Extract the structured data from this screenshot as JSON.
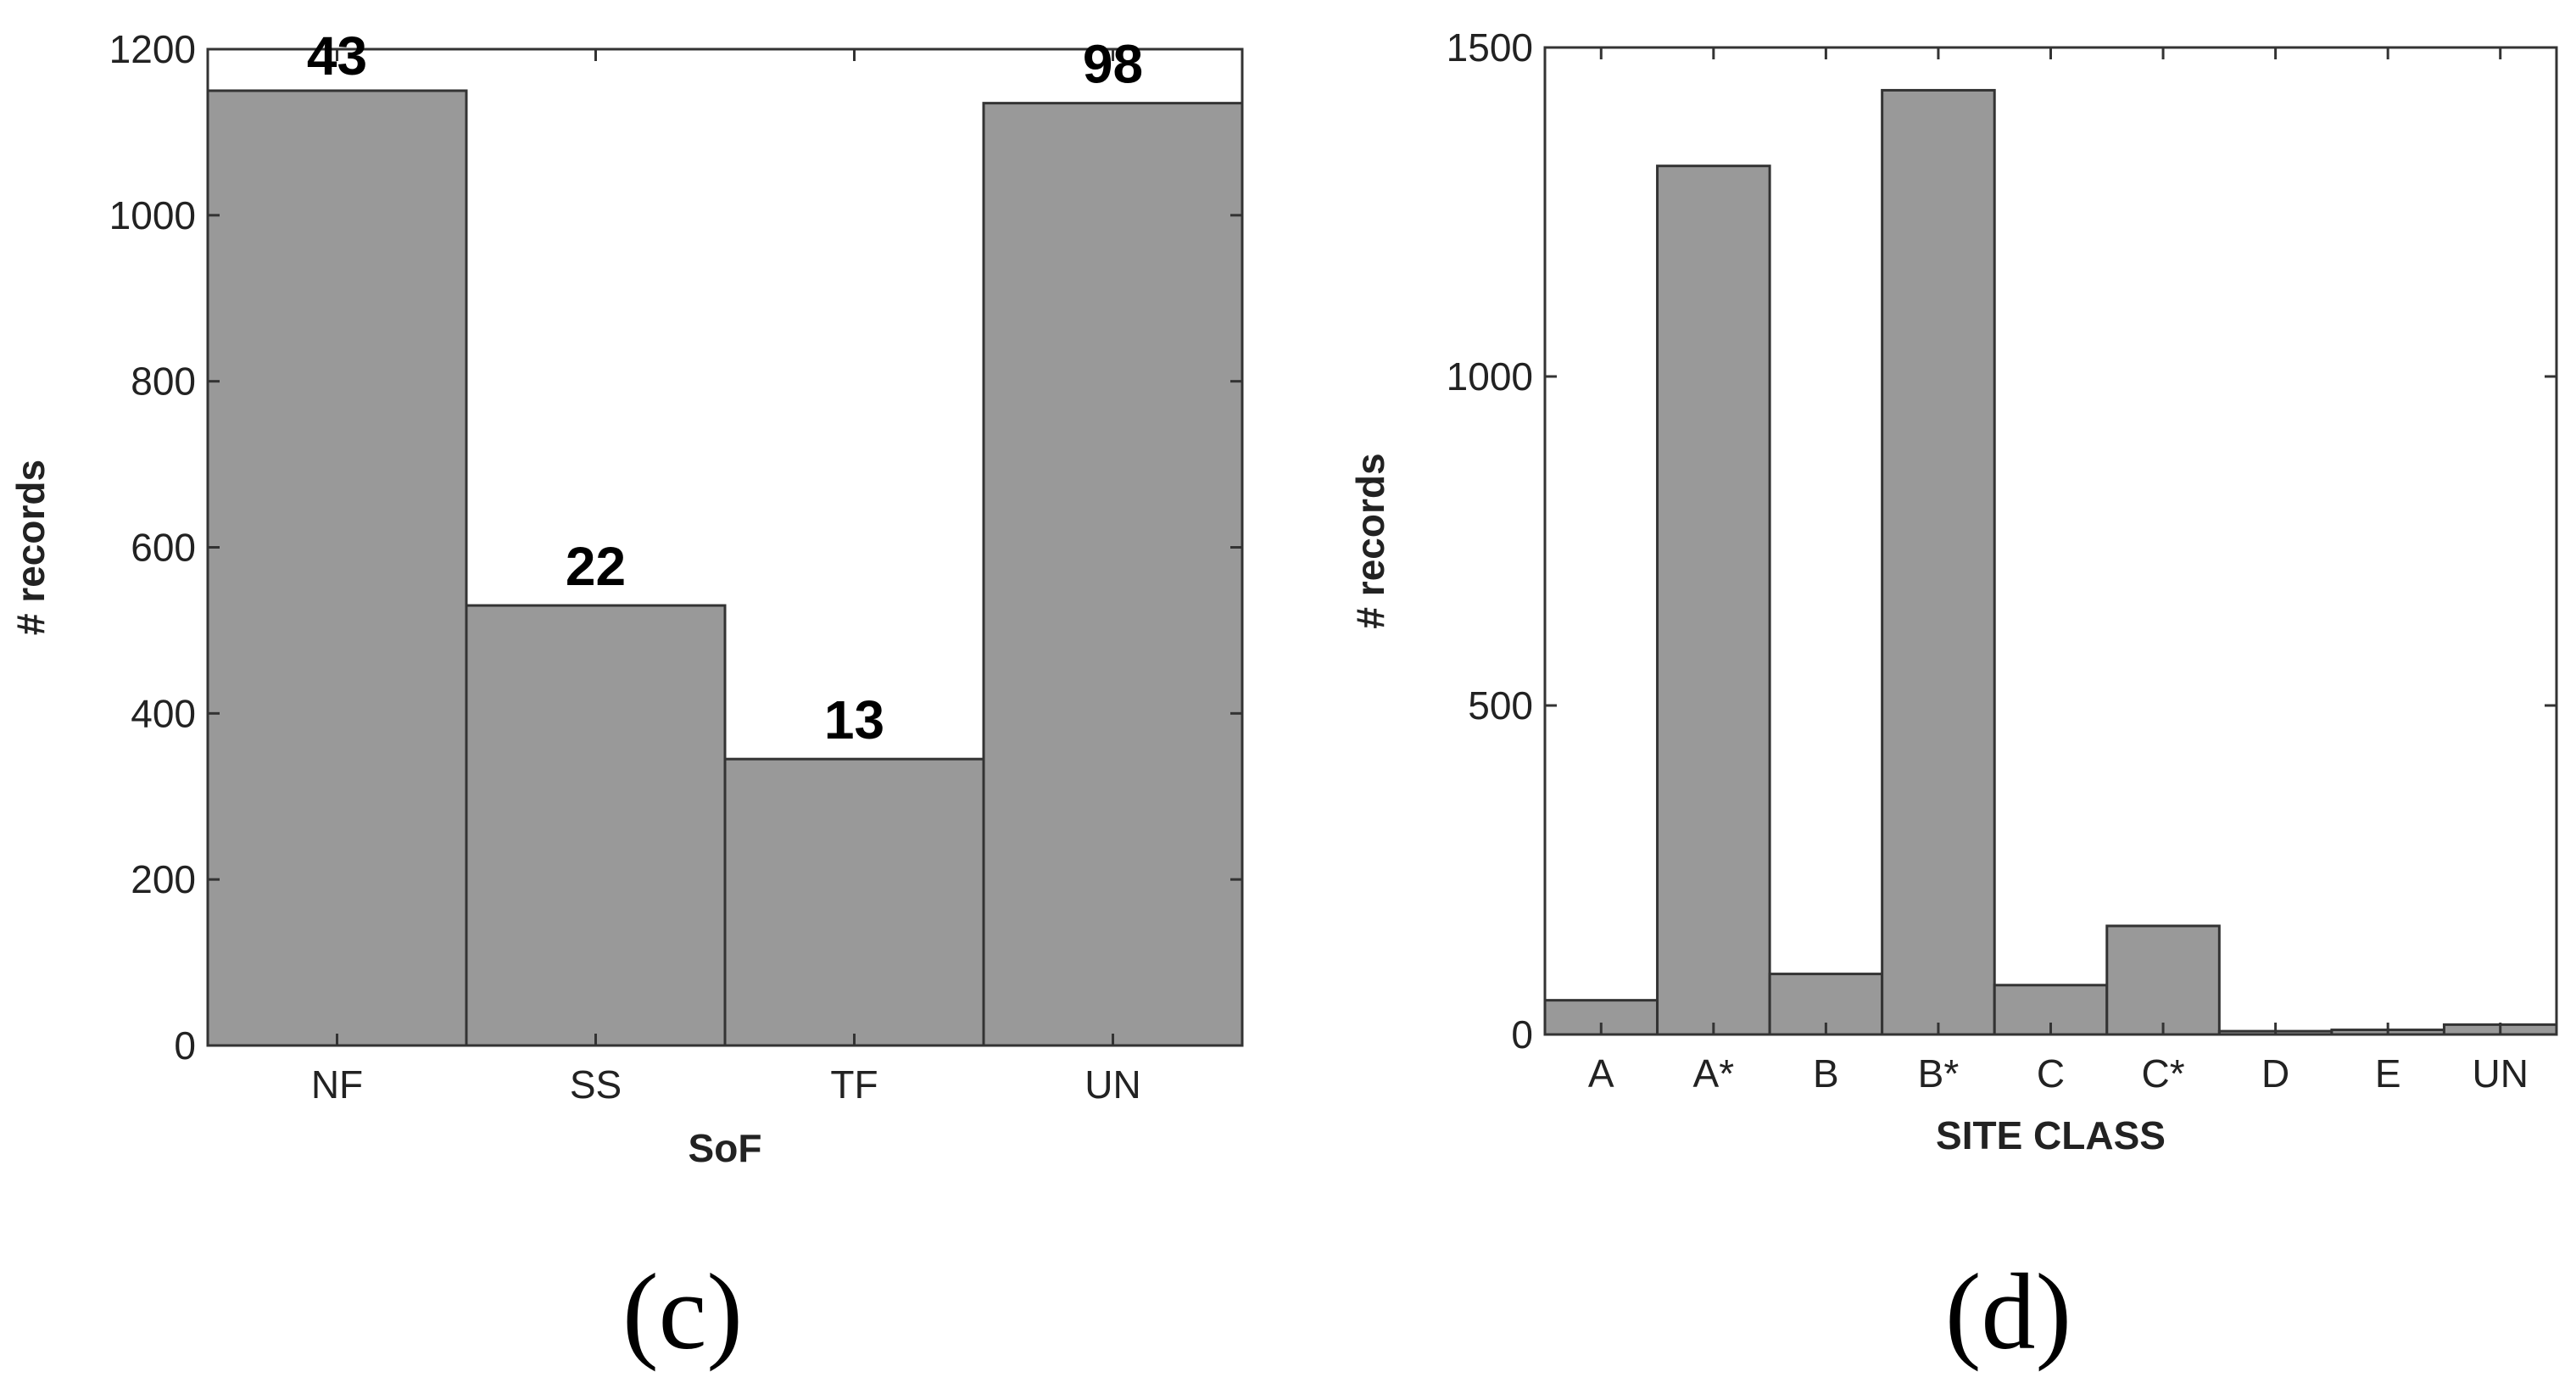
{
  "chart_data": [
    {
      "type": "bar",
      "panel_label": "(c)",
      "categories": [
        "NF",
        "SS",
        "TF",
        "UN"
      ],
      "values": [
        1150,
        530,
        345,
        1135
      ],
      "data_labels": [
        "43",
        "22",
        "13",
        "98"
      ],
      "xlabel": "SoF",
      "ylabel": "# records",
      "ylim": [
        0,
        1200
      ],
      "yticks": [
        0,
        200,
        400,
        600,
        800,
        1000,
        1200
      ],
      "grid": false,
      "bar_color": "#999999"
    },
    {
      "type": "bar",
      "panel_label": "(d)",
      "categories": [
        "A",
        "A*",
        "B",
        "B*",
        "C",
        "C*",
        "D",
        "E",
        "UN"
      ],
      "values": [
        52,
        1320,
        92,
        1435,
        75,
        165,
        5,
        7,
        15
      ],
      "xlabel": "SITE CLASS",
      "ylabel": "# records",
      "ylim": [
        0,
        1500
      ],
      "yticks": [
        0,
        500,
        1000,
        1500
      ],
      "grid": false,
      "bar_color": "#999999"
    }
  ]
}
